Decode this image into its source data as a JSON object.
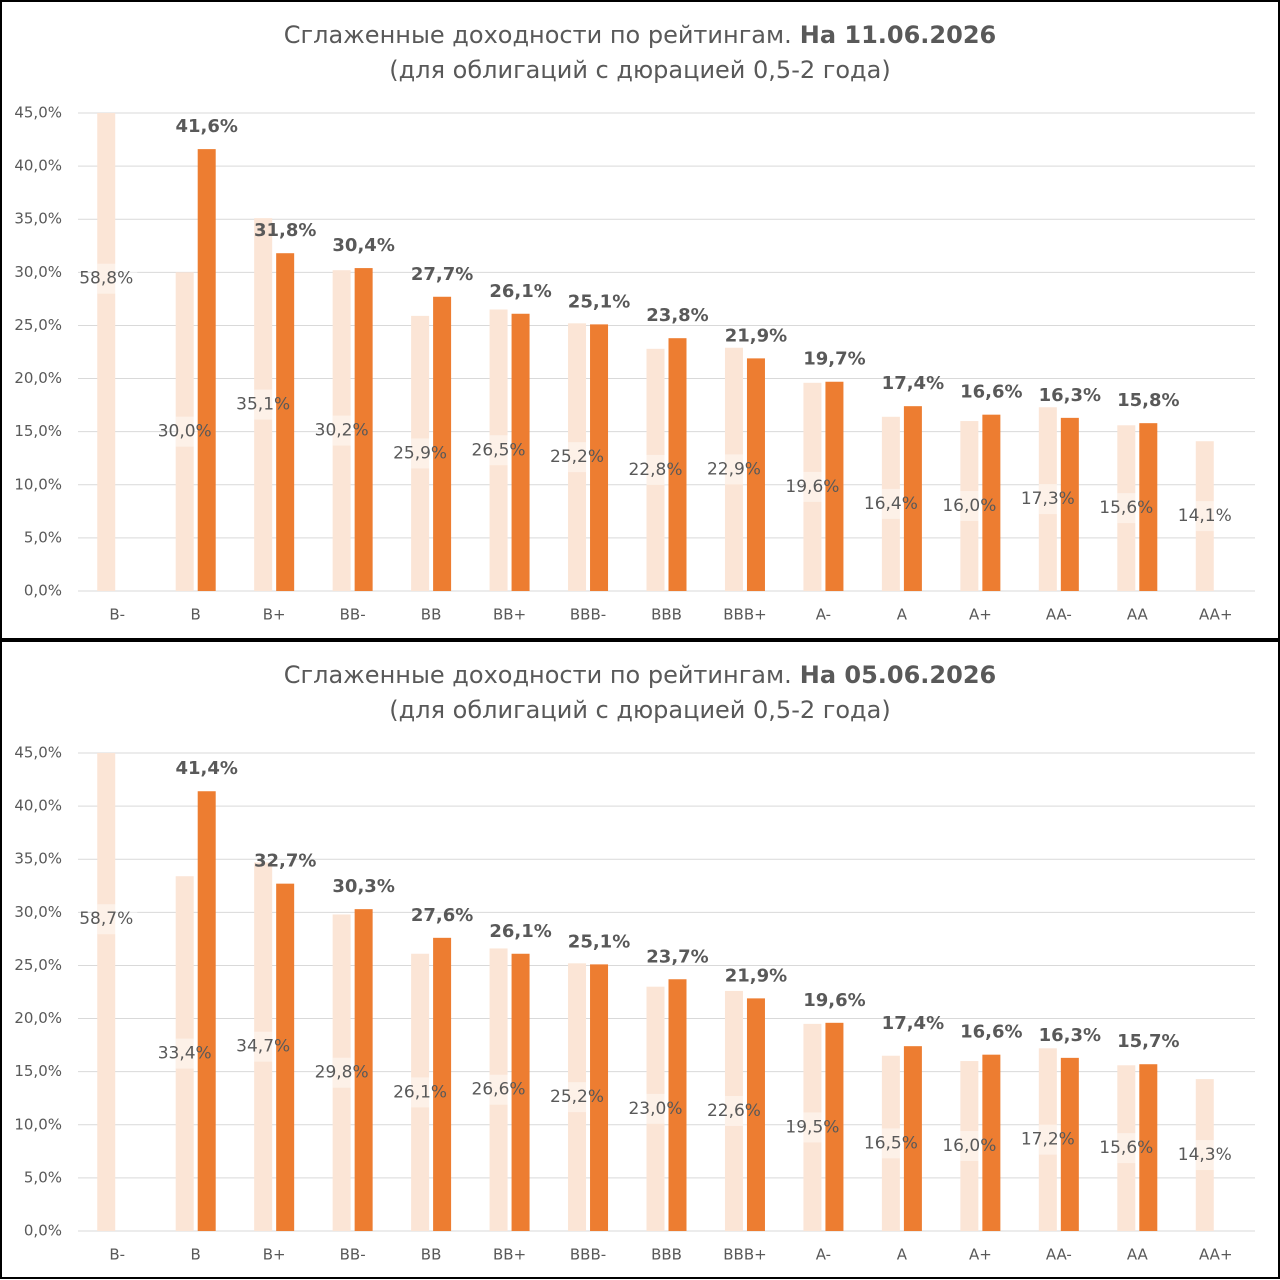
{
  "chart_data": [
    {
      "type": "bar",
      "title": "Сглаженные доходности по рейтингам.",
      "title_emphasis": "На 11.06.2026",
      "subtitle": "(для облигаций с дюрацией 0,5-2 года)",
      "categories": [
        "B-",
        "B",
        "B+",
        "BB-",
        "BB",
        "BB+",
        "BBB-",
        "BBB",
        "BBB+",
        "A-",
        "A",
        "A+",
        "AA-",
        "AA",
        "AA+"
      ],
      "series": [
        {
          "color": "#fbe5d6",
          "values": [
            58.8,
            30.0,
            35.1,
            30.2,
            25.9,
            26.5,
            25.2,
            22.8,
            22.9,
            19.6,
            16.4,
            16.0,
            17.3,
            15.6,
            14.1
          ],
          "value_labels": [
            "58,8%",
            "30,0%",
            "35,1%",
            "30,2%",
            "25,9%",
            "26,5%",
            "25,2%",
            "22,8%",
            "22,9%",
            "19,6%",
            "16,4%",
            "16,0%",
            "17,3%",
            "15,6%",
            "14,1%"
          ]
        },
        {
          "color": "#ed7d31",
          "values": [
            null,
            41.6,
            31.8,
            30.4,
            27.7,
            26.1,
            25.1,
            23.8,
            21.9,
            19.7,
            17.4,
            16.6,
            16.3,
            15.8,
            null
          ],
          "value_labels": [
            null,
            "41,6%",
            "31,8%",
            "30,4%",
            "27,7%",
            "26,1%",
            "25,1%",
            "23,8%",
            "21,9%",
            "19,7%",
            "17,4%",
            "16,6%",
            "16,3%",
            "15,8%",
            null
          ]
        }
      ],
      "ylim": [
        0,
        45
      ],
      "yticks": [
        {
          "value": 0,
          "label": "0,0%"
        },
        {
          "value": 5,
          "label": "5,0%"
        },
        {
          "value": 10,
          "label": "10,0%"
        },
        {
          "value": 15,
          "label": "15,0%"
        },
        {
          "value": 20,
          "label": "20,0%"
        },
        {
          "value": 25,
          "label": "25,0%"
        },
        {
          "value": 30,
          "label": "30,0%"
        },
        {
          "value": 35,
          "label": "35,0%"
        },
        {
          "value": 40,
          "label": "40,0%"
        },
        {
          "value": 45,
          "label": "45,0%"
        }
      ],
      "grid": true
    },
    {
      "type": "bar",
      "title": "Сглаженные доходности по рейтингам.",
      "title_emphasis": "На 05.06.2026",
      "subtitle": "(для облигаций с дюрацией 0,5-2 года)",
      "categories": [
        "B-",
        "B",
        "B+",
        "BB-",
        "BB",
        "BB+",
        "BBB-",
        "BBB",
        "BBB+",
        "A-",
        "A",
        "A+",
        "AA-",
        "AA",
        "AA+"
      ],
      "series": [
        {
          "color": "#fbe5d6",
          "values": [
            58.7,
            33.4,
            34.7,
            29.8,
            26.1,
            26.6,
            25.2,
            23.0,
            22.6,
            19.5,
            16.5,
            16.0,
            17.2,
            15.6,
            14.3
          ],
          "value_labels": [
            "58,7%",
            "33,4%",
            "34,7%",
            "29,8%",
            "26,1%",
            "26,6%",
            "25,2%",
            "23,0%",
            "22,6%",
            "19,5%",
            "16,5%",
            "16,0%",
            "17,2%",
            "15,6%",
            "14,3%"
          ]
        },
        {
          "color": "#ed7d31",
          "values": [
            null,
            41.4,
            32.7,
            30.3,
            27.6,
            26.1,
            25.1,
            23.7,
            21.9,
            19.6,
            17.4,
            16.6,
            16.3,
            15.7,
            null
          ],
          "value_labels": [
            null,
            "41,4%",
            "32,7%",
            "30,3%",
            "27,6%",
            "26,1%",
            "25,1%",
            "23,7%",
            "21,9%",
            "19,6%",
            "17,4%",
            "16,6%",
            "16,3%",
            "15,7%",
            null
          ]
        }
      ],
      "ylim": [
        0,
        45
      ],
      "yticks": [
        {
          "value": 0,
          "label": "0,0%"
        },
        {
          "value": 5,
          "label": "5,0%"
        },
        {
          "value": 10,
          "label": "10,0%"
        },
        {
          "value": 15,
          "label": "15,0%"
        },
        {
          "value": 20,
          "label": "20,0%"
        },
        {
          "value": 25,
          "label": "25,0%"
        },
        {
          "value": 30,
          "label": "30,0%"
        },
        {
          "value": 35,
          "label": "35,0%"
        },
        {
          "value": 40,
          "label": "40,0%"
        },
        {
          "value": 45,
          "label": "45,0%"
        }
      ],
      "grid": true
    }
  ]
}
